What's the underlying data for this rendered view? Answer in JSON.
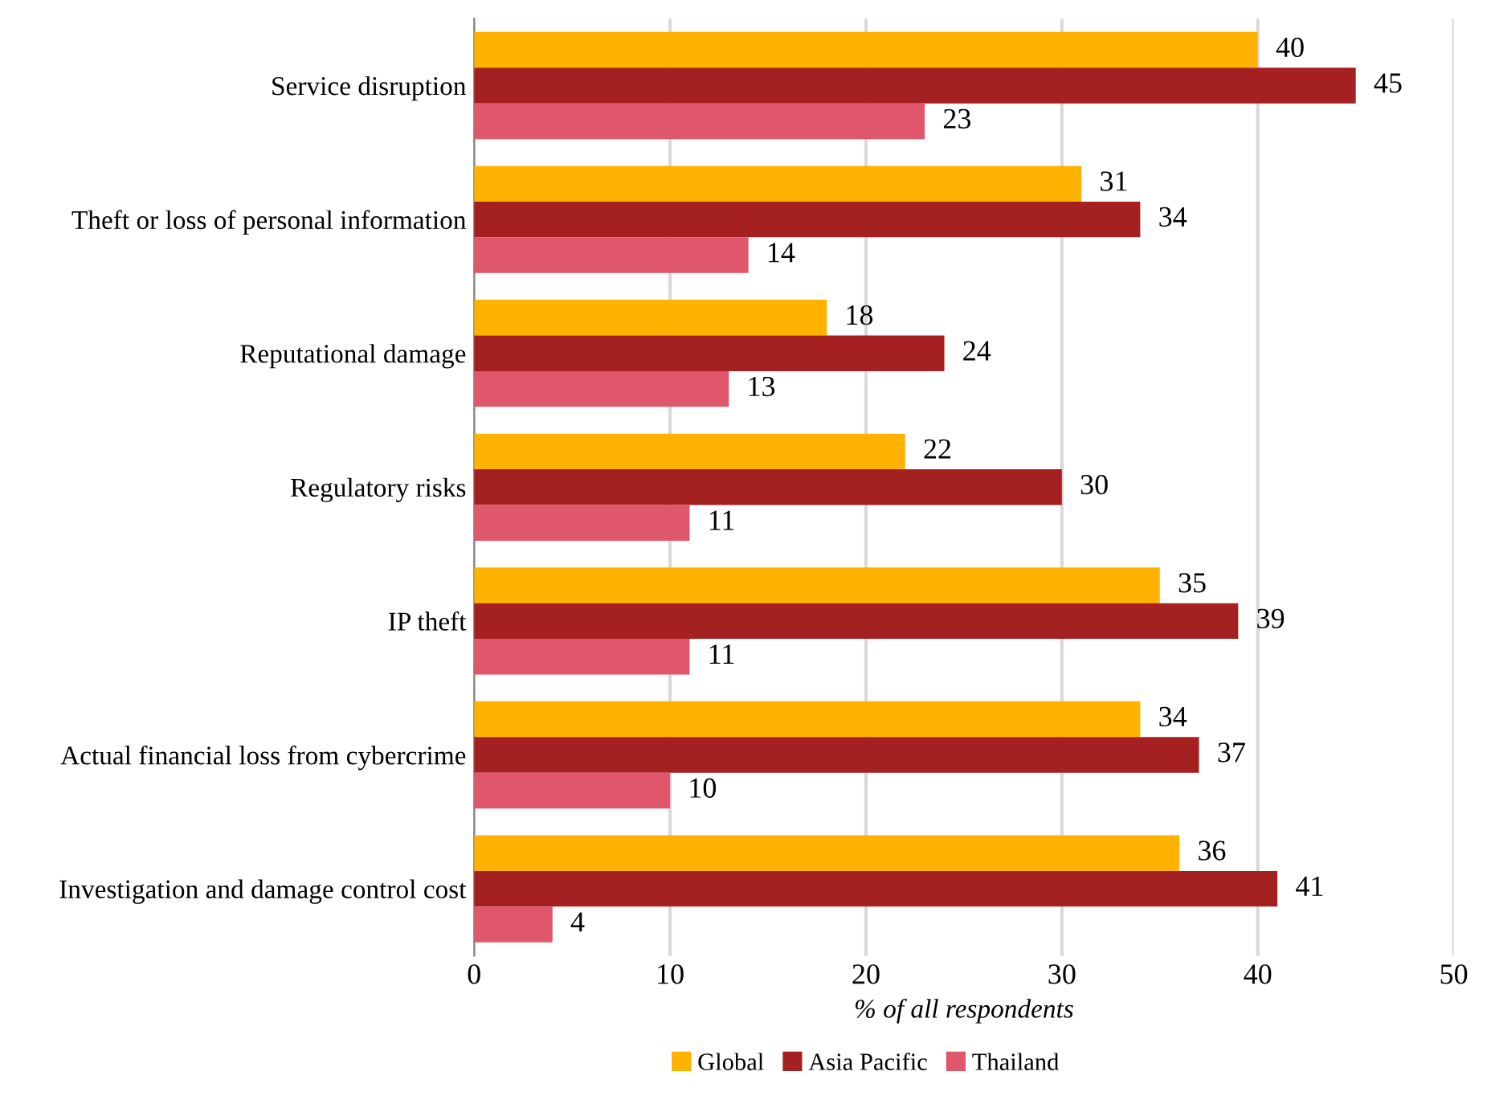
{
  "chart_data": {
    "type": "bar",
    "orientation": "horizontal",
    "xlabel": "% of all respondents",
    "categories": [
      "Service disruption",
      "Theft or loss of personal information",
      "Reputational damage",
      "Regulatory risks",
      "IP theft",
      "Actual financial loss from cybercrime",
      "Investigation and damage control cost"
    ],
    "series": [
      {
        "name": "Global",
        "color": "#ffb300",
        "values": [
          40,
          31,
          18,
          22,
          35,
          34,
          36
        ]
      },
      {
        "name": "Asia Pacific",
        "color": "#a52021",
        "values": [
          45,
          34,
          24,
          30,
          39,
          37,
          41
        ]
      },
      {
        "name": "Thailand",
        "color": "#e0566b",
        "values": [
          23,
          14,
          13,
          11,
          11,
          10,
          4
        ]
      }
    ],
    "xlim": [
      0,
      50
    ],
    "xticks": [
      0,
      10,
      20,
      30,
      40,
      50
    ],
    "grid": "x",
    "legend": "bottom",
    "data_labels": true
  }
}
